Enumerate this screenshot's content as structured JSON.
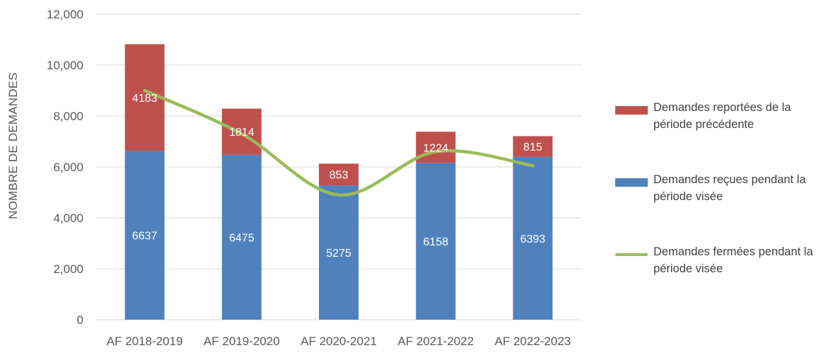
{
  "chart_data": {
    "type": "stacked-bar-line",
    "title": "",
    "xlabel": "",
    "ylabel": "NOMBRE DE DEMANDES",
    "ylim": [
      0,
      12000
    ],
    "yticks": [
      0,
      2000,
      4000,
      6000,
      8000,
      10000,
      12000
    ],
    "ytick_labels": [
      "0",
      "2,000",
      "4,000",
      "6,000",
      "8,000",
      "10,000",
      "12,000"
    ],
    "grid": true,
    "legend_position": "right",
    "categories": [
      "AF 2018-2019",
      "AF 2019-2020",
      "AF 2020-2021",
      "AF 2021-2022",
      "AF 2022-2023"
    ],
    "series": [
      {
        "name": "Demandes reçues pendant la période visée",
        "kind": "bar",
        "color": "#4F81BD",
        "values": [
          6637,
          6475,
          5275,
          6158,
          6393
        ],
        "labels": [
          "6637",
          "6475",
          "5275",
          "6158",
          "6393"
        ]
      },
      {
        "name": "Demandes reportées de la période précédente",
        "kind": "bar",
        "color": "#C0504D",
        "values": [
          4183,
          1814,
          853,
          1224,
          815
        ],
        "labels": [
          "4183",
          "1814",
          "853",
          "1224",
          "815"
        ]
      },
      {
        "name": "Demandes fermées pendant la période visée",
        "kind": "line",
        "color": "#9BBB59",
        "values": [
          9000,
          7300,
          4900,
          6600,
          6050
        ]
      }
    ]
  },
  "legend": [
    {
      "label": "Demandes reportées de la période précédente",
      "color": "#C0504D",
      "kind": "bar"
    },
    {
      "label": "Demandes reçues pendant la période visée",
      "color": "#4F81BD",
      "kind": "bar"
    },
    {
      "label": "Demandes fermées pendant la période visée",
      "color": "#9BBB59",
      "kind": "line"
    }
  ]
}
